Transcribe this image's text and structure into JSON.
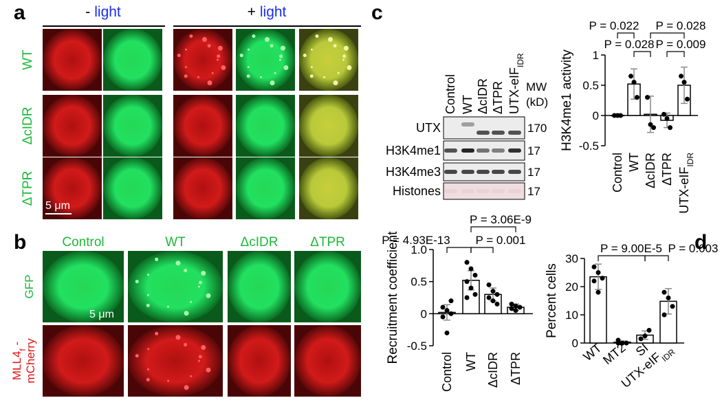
{
  "figure": {
    "panel_a": {
      "label": "a",
      "conditions": [
        {
          "sign": "-",
          "word": "light"
        },
        {
          "sign": "+",
          "word": "light"
        }
      ],
      "rows": [
        "WT",
        "ΔcIDR",
        "ΔTPR"
      ],
      "scale_bar": "5 μm"
    },
    "panel_b": {
      "label": "b",
      "columns": [
        "Control",
        "WT",
        "ΔcIDR",
        "ΔTPR"
      ],
      "row_gfp": "GFP",
      "row_mcherry": {
        "a": "MLL4",
        "sub": "f",
        "b": " -",
        "line2": "mCherry"
      },
      "scale_bar": "5 μm"
    },
    "panel_c": {
      "label": "c",
      "lanes": [
        "Control",
        "WT",
        "ΔcIDR",
        "ΔTPR",
        "UTX-eIF"
      ],
      "lane_sub": {
        "4": "IDR"
      },
      "mw_header": [
        "MW",
        "(kD)"
      ],
      "bands": [
        "UTX",
        "H3K4me1",
        "H3K4me3",
        "Histones"
      ],
      "mw": [
        "170",
        "17",
        "17",
        "17"
      ]
    },
    "panel_d_label": "d"
  },
  "chart_data": [
    {
      "type": "bar",
      "y_label": "H3K4me1 activity",
      "categories": [
        "Control",
        "WT",
        "ΔcIDR",
        "ΔTPR",
        "UTX-eIF"
      ],
      "category_sub": {
        "4": "IDR"
      },
      "values": [
        0,
        0.52,
        0.02,
        -0.08,
        0.5
      ],
      "errors": [
        0,
        0.25,
        0.3,
        0.12,
        0.3
      ],
      "points": [
        [
          0,
          0,
          0
        ],
        [
          0.65,
          0.55,
          0.3
        ],
        [
          0.3,
          -0.15,
          -0.2
        ],
        [
          0.02,
          -0.05,
          -0.2
        ],
        [
          0.65,
          0.55,
          0.27
        ]
      ],
      "ylim": [
        -0.5,
        1
      ],
      "yticks": [
        -0.5,
        0,
        0.5,
        1
      ],
      "annotations": [
        "P = 0.022",
        "P = 0.028",
        "P = 0.028",
        "P = 0.009"
      ]
    },
    {
      "type": "bar",
      "y_label": "Recruitment coefficient",
      "categories": [
        "Control",
        "WT",
        "ΔcIDR",
        "ΔTPR"
      ],
      "values": [
        0.02,
        0.52,
        0.3,
        0.1
      ],
      "errors": [
        0.12,
        0.15,
        0.1,
        0.05
      ],
      "points": [
        [
          0.1,
          0.05,
          0,
          -0.05,
          -0.3,
          0.2
        ],
        [
          0.8,
          0.7,
          0.6,
          0.5,
          0.4,
          0.3,
          0.25
        ],
        [
          0.45,
          0.35,
          0.3,
          0.25,
          0.2,
          0.15
        ],
        [
          0.15,
          0.12,
          0.1,
          0.08,
          0.05
        ]
      ],
      "ylim": [
        -0.5,
        1
      ],
      "yticks": [
        -0.5,
        0,
        0.5,
        {
          "value": 1,
          "label": "1.0"
        }
      ],
      "annotations": [
        "P = 4.93E-13",
        "P = 0.001",
        "P = 3.06E-9"
      ]
    },
    {
      "type": "bar",
      "y_label": "Percent cells",
      "categories": [
        "WT",
        "MT2",
        "SI",
        "UTX-eIF"
      ],
      "category_sub": {
        "3": "IDR"
      },
      "values": [
        23.5,
        0.3,
        2.8,
        14.8
      ],
      "errors": [
        4.5,
        0.4,
        1.5,
        4.5
      ],
      "points": [
        [
          27,
          25,
          23,
          22,
          18
        ],
        [
          0,
          0,
          0,
          1,
          0
        ],
        [
          1.5,
          2.5,
          4.5
        ],
        [
          18,
          16,
          13,
          10
        ]
      ],
      "ylim": [
        0,
        30
      ],
      "yticks": [
        0,
        10,
        20,
        30
      ],
      "annotations": [
        "P = 9.00E-5",
        "P = 0.003"
      ]
    }
  ]
}
